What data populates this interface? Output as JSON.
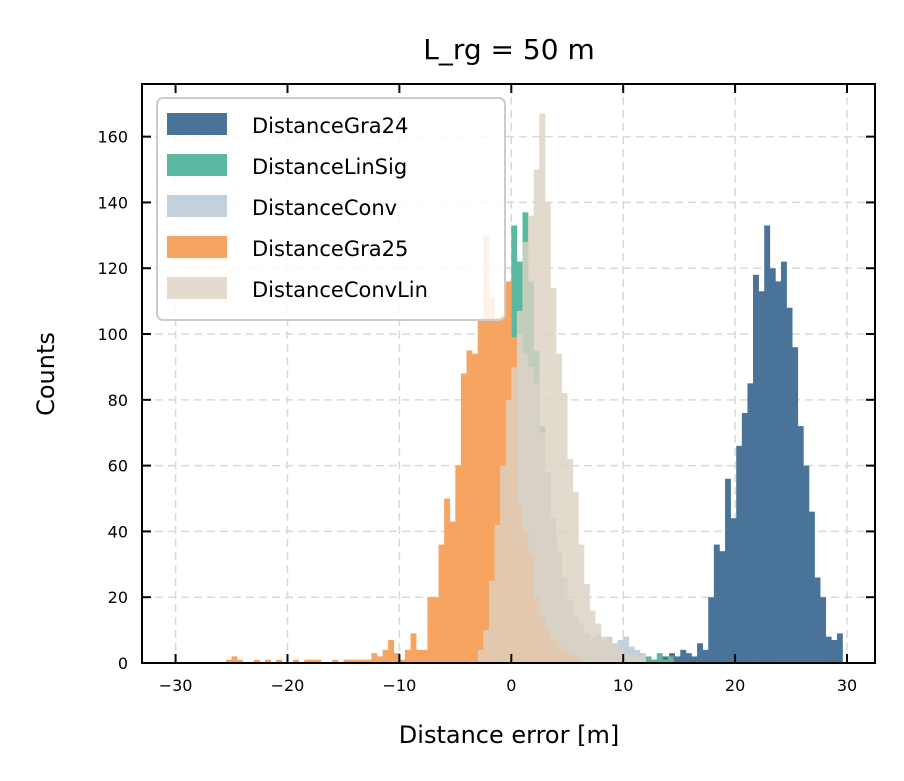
{
  "chart_data": {
    "type": "histogram",
    "title": "L_rg = 50 m",
    "xlabel": "Distance error [m]",
    "ylabel": "Counts",
    "xlim": [
      -33,
      32.5
    ],
    "ylim": [
      0,
      176
    ],
    "xticks": [
      -30,
      -20,
      -10,
      0,
      10,
      20,
      30
    ],
    "yticks": [
      0,
      20,
      40,
      60,
      80,
      100,
      120,
      140,
      160
    ],
    "grid": true,
    "legend_position": "upper-left",
    "series": [
      {
        "name": "DistanceGra24",
        "color": "#4a7399",
        "opacity": 1.0,
        "bins": [
          [
            9.6,
            10.1,
            1
          ],
          [
            10.1,
            10.6,
            0
          ],
          [
            10.6,
            11.1,
            1
          ],
          [
            11.1,
            11.6,
            1
          ],
          [
            11.6,
            12.1,
            0
          ],
          [
            12.1,
            12.6,
            1
          ],
          [
            12.6,
            13.1,
            1
          ],
          [
            13.1,
            13.6,
            2
          ],
          [
            13.6,
            14.1,
            2
          ],
          [
            14.1,
            14.6,
            3
          ],
          [
            14.6,
            15.1,
            2
          ],
          [
            15.1,
            15.6,
            4
          ],
          [
            15.6,
            16.1,
            3
          ],
          [
            16.1,
            16.6,
            2
          ],
          [
            16.6,
            17.1,
            6
          ],
          [
            17.1,
            17.6,
            4
          ],
          [
            17.6,
            18.1,
            20
          ],
          [
            18.1,
            18.6,
            36
          ],
          [
            18.6,
            19.1,
            34
          ],
          [
            19.1,
            19.6,
            56
          ],
          [
            19.6,
            20.1,
            44
          ],
          [
            20.1,
            20.6,
            66
          ],
          [
            20.6,
            21.1,
            76
          ],
          [
            21.1,
            21.6,
            85
          ],
          [
            21.6,
            22.1,
            118
          ],
          [
            22.1,
            22.6,
            113
          ],
          [
            22.6,
            23.1,
            133
          ],
          [
            23.1,
            23.6,
            120
          ],
          [
            23.6,
            24.1,
            116
          ],
          [
            24.1,
            24.6,
            122
          ],
          [
            24.6,
            25.1,
            108
          ],
          [
            25.1,
            25.6,
            96
          ],
          [
            25.6,
            26.1,
            72
          ],
          [
            26.1,
            26.6,
            60
          ],
          [
            26.6,
            27.1,
            46
          ],
          [
            27.1,
            27.6,
            26
          ],
          [
            27.6,
            28.1,
            20
          ],
          [
            28.1,
            28.6,
            8
          ],
          [
            28.6,
            29.1,
            7
          ],
          [
            29.1,
            29.6,
            9
          ]
        ]
      },
      {
        "name": "DistanceLinSig",
        "color": "#5ab9a0",
        "opacity": 1.0,
        "bins": [
          [
            -3,
            -2.5,
            1
          ],
          [
            -2.5,
            -2,
            4
          ],
          [
            -2,
            -1.5,
            10
          ],
          [
            -1.5,
            -1,
            30
          ],
          [
            -1,
            -0.5,
            65
          ],
          [
            -0.5,
            0,
            93
          ],
          [
            0,
            0.5,
            133
          ],
          [
            0.5,
            1,
            122
          ],
          [
            1,
            1.5,
            137
          ],
          [
            1.5,
            2,
            116
          ],
          [
            2,
            2.5,
            95
          ],
          [
            2.5,
            3,
            72
          ],
          [
            3,
            3.5,
            56
          ],
          [
            3.5,
            4,
            40
          ],
          [
            4,
            4.5,
            30
          ],
          [
            4.5,
            5,
            20
          ],
          [
            5,
            5.5,
            14
          ],
          [
            5.5,
            6,
            10
          ],
          [
            6,
            6.5,
            7
          ],
          [
            6.5,
            7,
            5
          ],
          [
            7,
            7.5,
            6
          ],
          [
            7.5,
            8,
            5
          ],
          [
            8,
            8.5,
            4
          ],
          [
            8.5,
            9,
            3
          ],
          [
            9,
            9.5,
            3
          ],
          [
            9.5,
            10,
            2
          ],
          [
            10,
            10.5,
            3
          ],
          [
            10.5,
            11,
            2
          ],
          [
            11,
            11.5,
            3
          ],
          [
            11.5,
            12,
            2
          ],
          [
            12,
            12.5,
            2
          ],
          [
            12.5,
            13,
            1
          ],
          [
            13,
            13.5,
            3
          ],
          [
            13.5,
            14,
            1
          ],
          [
            14,
            14.5,
            2
          ]
        ]
      },
      {
        "name": "DistanceConv",
        "color": "#c2d1db",
        "opacity": 1.0,
        "bins": [
          [
            -3,
            -2.5,
            2
          ],
          [
            -2.5,
            -2,
            8
          ],
          [
            -2,
            -1.5,
            20
          ],
          [
            -1.5,
            -1,
            40
          ],
          [
            -1,
            -0.5,
            70
          ],
          [
            -0.5,
            0,
            88
          ],
          [
            0,
            0.5,
            96
          ],
          [
            0.5,
            1,
            100
          ],
          [
            1,
            1.5,
            94
          ],
          [
            1.5,
            2,
            90
          ],
          [
            2,
            2.5,
            85
          ],
          [
            2.5,
            3,
            70
          ],
          [
            3,
            3.5,
            58
          ],
          [
            3.5,
            4,
            44
          ],
          [
            4,
            4.5,
            34
          ],
          [
            4.5,
            5,
            26
          ],
          [
            5,
            5.5,
            19
          ],
          [
            5.5,
            6,
            14
          ],
          [
            6,
            6.5,
            12
          ],
          [
            6.5,
            7,
            9
          ],
          [
            7,
            7.5,
            8
          ],
          [
            7.5,
            8,
            9
          ],
          [
            8,
            8.5,
            7
          ],
          [
            8.5,
            9,
            8
          ],
          [
            9,
            9.5,
            6
          ],
          [
            9.5,
            10,
            7
          ],
          [
            10,
            10.5,
            8
          ],
          [
            10.5,
            11,
            5
          ],
          [
            11,
            11.5,
            4
          ],
          [
            11.5,
            12,
            3
          ]
        ]
      },
      {
        "name": "DistanceGra25",
        "color": "#f6a45f",
        "opacity": 1.0,
        "bins": [
          [
            -25.5,
            -25,
            1
          ],
          [
            -25,
            -24.5,
            2
          ],
          [
            -24.5,
            -24,
            1
          ],
          [
            -23,
            -22.5,
            1
          ],
          [
            -22,
            -21.5,
            1
          ],
          [
            -21,
            -20.5,
            1
          ],
          [
            -19.5,
            -19,
            1
          ],
          [
            -18.5,
            -18,
            1
          ],
          [
            -18,
            -17.5,
            1
          ],
          [
            -17.5,
            -17,
            1
          ],
          [
            -16,
            -15.5,
            1
          ],
          [
            -15,
            -14.5,
            1
          ],
          [
            -14.5,
            -14,
            1
          ],
          [
            -14,
            -13.5,
            1
          ],
          [
            -13.5,
            -13,
            1
          ],
          [
            -13,
            -12.5,
            1
          ],
          [
            -12.5,
            -12,
            3
          ],
          [
            -12,
            -11.5,
            2
          ],
          [
            -11.5,
            -11,
            4
          ],
          [
            -11,
            -10.5,
            7
          ],
          [
            -10.5,
            -10,
            3
          ],
          [
            -10,
            -9.5,
            1
          ],
          [
            -9.5,
            -9,
            4
          ],
          [
            -9,
            -8.5,
            9
          ],
          [
            -8.5,
            -8,
            4
          ],
          [
            -8,
            -7.5,
            4
          ],
          [
            -7.5,
            -7,
            20
          ],
          [
            -7,
            -6.5,
            20
          ],
          [
            -6.5,
            -6,
            36
          ],
          [
            -6,
            -5.5,
            50
          ],
          [
            -5.5,
            -5,
            43
          ],
          [
            -5,
            -4.5,
            60
          ],
          [
            -4.5,
            -4,
            88
          ],
          [
            -4,
            -3.5,
            95
          ],
          [
            -3.5,
            -3,
            94
          ],
          [
            -3,
            -2.5,
            104
          ],
          [
            -2.5,
            -2,
            130
          ],
          [
            -2,
            -1.5,
            111
          ],
          [
            -1.5,
            -1,
            105
          ],
          [
            -1,
            -0.5,
            106
          ],
          [
            -0.5,
            0,
            116
          ],
          [
            0,
            0.5,
            99
          ],
          [
            0.5,
            1,
            48
          ],
          [
            1,
            1.5,
            40
          ],
          [
            1.5,
            2,
            33
          ],
          [
            2,
            2.5,
            20
          ],
          [
            2.5,
            3,
            14
          ],
          [
            3,
            3.5,
            10
          ],
          [
            3.5,
            4,
            7
          ],
          [
            4,
            4.5,
            5
          ],
          [
            4.5,
            5,
            4
          ],
          [
            5,
            5.5,
            3
          ],
          [
            5.5,
            6,
            2
          ],
          [
            6,
            6.5,
            1
          ]
        ]
      },
      {
        "name": "DistanceConvLin",
        "color": "#ddd2c2",
        "opacity": 0.8,
        "bins": [
          [
            -3,
            -2.5,
            4
          ],
          [
            -2.5,
            -2,
            10
          ],
          [
            -2,
            -1.5,
            25
          ],
          [
            -1.5,
            -1,
            42
          ],
          [
            -1,
            -0.5,
            60
          ],
          [
            -0.5,
            0,
            80
          ],
          [
            0,
            0.5,
            90
          ],
          [
            0.5,
            1,
            107
          ],
          [
            1,
            1.5,
            128
          ],
          [
            1.5,
            2,
            136
          ],
          [
            2,
            2.5,
            150
          ],
          [
            2.5,
            3,
            167
          ],
          [
            3,
            3.5,
            140
          ],
          [
            3.5,
            4,
            114
          ],
          [
            4,
            4.5,
            94
          ],
          [
            4.5,
            5,
            82
          ],
          [
            5,
            5.5,
            62
          ],
          [
            5.5,
            6,
            52
          ],
          [
            6,
            6.5,
            36
          ],
          [
            6.5,
            7,
            24
          ],
          [
            7,
            7.5,
            16
          ],
          [
            7.5,
            8,
            12
          ],
          [
            8,
            8.5,
            8
          ],
          [
            8.5,
            9,
            7
          ],
          [
            9,
            9.5,
            6
          ],
          [
            9.5,
            10,
            4
          ],
          [
            10,
            10.5,
            3
          ],
          [
            10.5,
            11,
            2
          ],
          [
            11,
            11.5,
            2
          ],
          [
            11.5,
            12,
            1
          ]
        ]
      }
    ]
  }
}
